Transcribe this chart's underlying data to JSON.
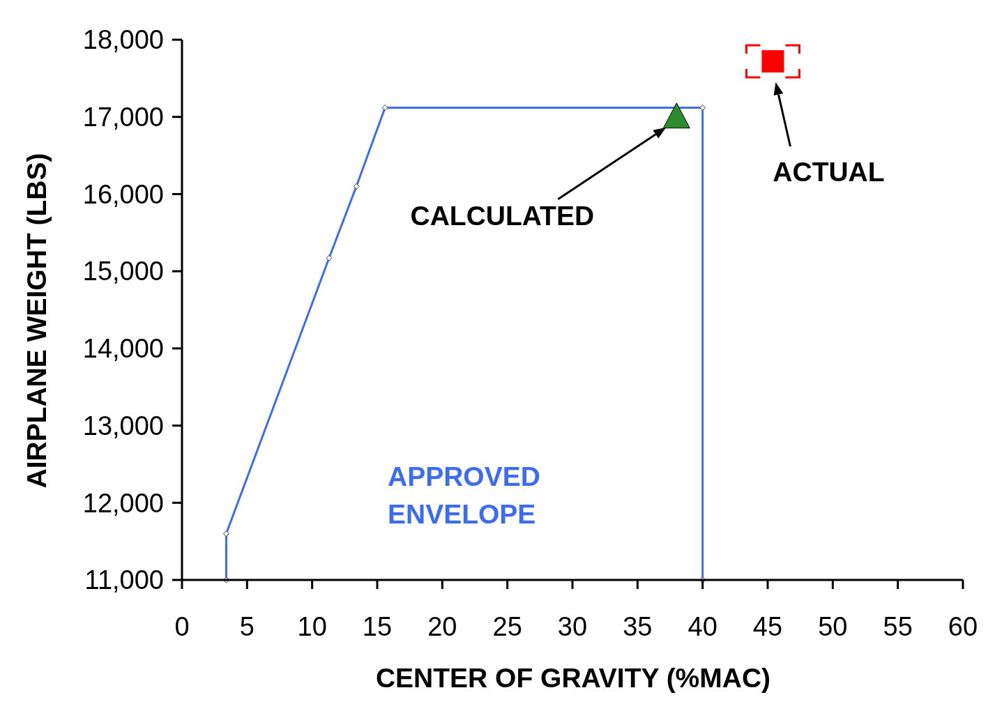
{
  "chart_data": {
    "type": "line",
    "xlabel": "CENTER OF GRAVITY (%MAC)",
    "ylabel": "AIRPLANE WEIGHT (LBS)",
    "xlim": [
      0,
      60
    ],
    "xticks": [
      0,
      5,
      10,
      15,
      20,
      25,
      30,
      35,
      40,
      45,
      50,
      55,
      60
    ],
    "ylim": [
      11000,
      18000
    ],
    "yticks": [
      {
        "value": 11000,
        "label": "11,000"
      },
      {
        "value": 12000,
        "label": "12,000"
      },
      {
        "value": 13000,
        "label": "13,000"
      },
      {
        "value": 14000,
        "label": "14,000"
      },
      {
        "value": 15000,
        "label": "15,000"
      },
      {
        "value": 16000,
        "label": "16,000"
      },
      {
        "value": 17000,
        "label": "17,000"
      },
      {
        "value": 18000,
        "label": "18,000"
      }
    ],
    "grid": false,
    "legend": false,
    "series": [
      {
        "name": "APPROVED ENVELOPE",
        "color": "#3c6cf0",
        "marker": "diamond",
        "x": [
          3.4,
          3.4,
          11.3,
          13.4,
          15.6,
          40,
          40
        ],
        "values": [
          11000,
          11600,
          15170,
          16100,
          17120,
          17120,
          11000
        ]
      },
      {
        "type": "scatter",
        "color": "#2e8b2e",
        "marker": "triangle",
        "x": [
          38
        ],
        "values": [
          17000
        ]
      },
      {
        "type": "scatter",
        "color": "#ff0000",
        "marker": "square",
        "x": [
          45.4
        ],
        "values": [
          17720
        ]
      }
    ],
    "annotations": [
      "CALCULATED",
      "ACTUAL"
    ]
  }
}
